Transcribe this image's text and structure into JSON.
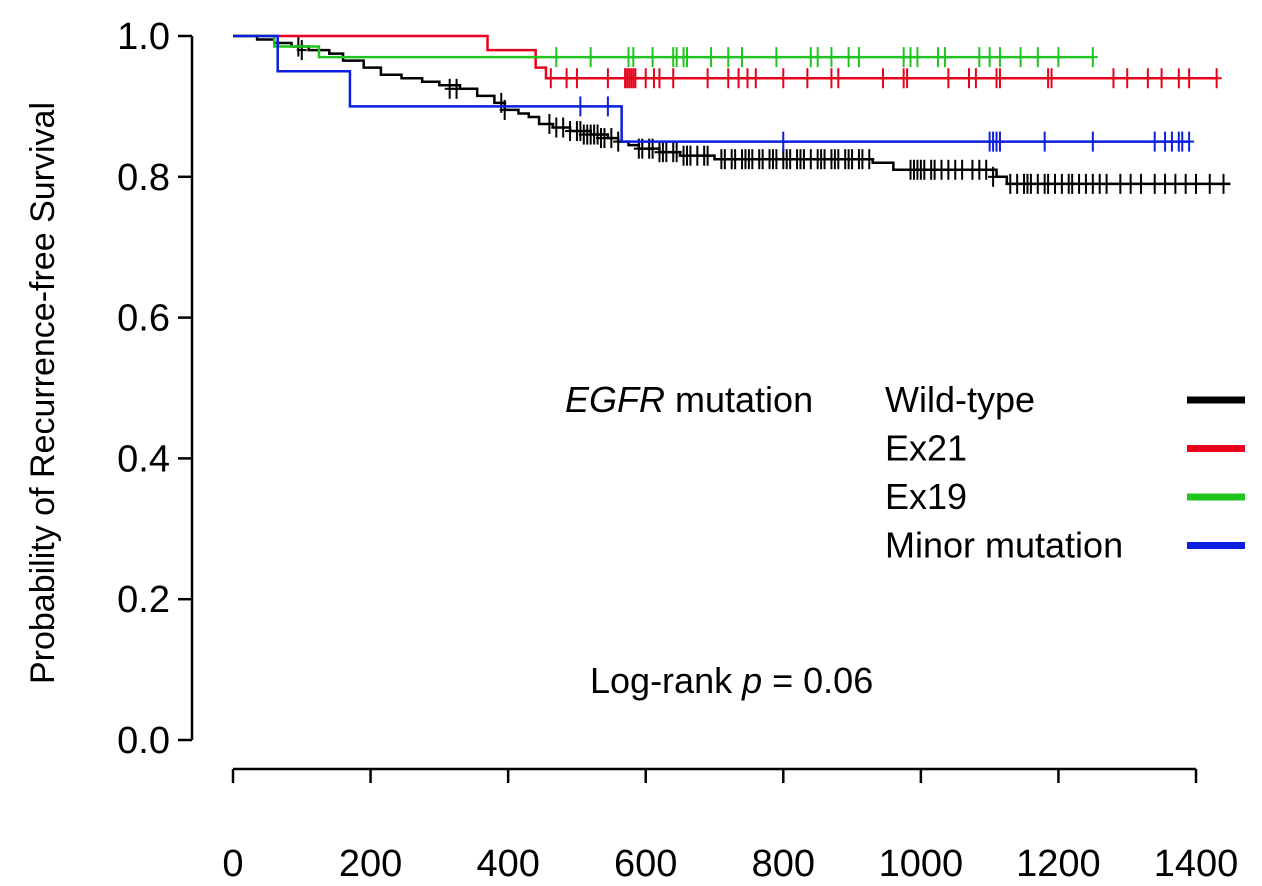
{
  "chart_data": {
    "type": "line",
    "subtype": "kaplan-meier",
    "title": "",
    "xlabel": "",
    "ylabel": "Probability of Recurrence-free Survival",
    "xlim": [
      0,
      1400
    ],
    "ylim": [
      0.0,
      1.0
    ],
    "x_ticks": [
      "0",
      "200",
      "400",
      "600",
      "800",
      "1000",
      "1200",
      "1400"
    ],
    "y_ticks": [
      "0.0",
      "0.2",
      "0.4",
      "0.6",
      "0.8",
      "1.0"
    ],
    "x_tick_values": [
      0,
      200,
      400,
      600,
      800,
      1000,
      1200,
      1400
    ],
    "y_tick_values": [
      0.0,
      0.2,
      0.4,
      0.6,
      0.8,
      1.0
    ],
    "grid": false,
    "legend": {
      "position": "right",
      "title_italic": "EGFR",
      "title_rest": " mutation"
    },
    "annotation": {
      "prefix": "Log-rank ",
      "p": "p",
      "suffix": " = 0.06"
    },
    "series": [
      {
        "name": "Wild-type",
        "color": "#000000",
        "steps": [
          [
            0,
            1.0
          ],
          [
            35,
            0.995
          ],
          [
            60,
            0.99
          ],
          [
            85,
            0.985
          ],
          [
            110,
            0.98
          ],
          [
            140,
            0.975
          ],
          [
            160,
            0.965
          ],
          [
            190,
            0.955
          ],
          [
            215,
            0.945
          ],
          [
            245,
            0.94
          ],
          [
            275,
            0.935
          ],
          [
            300,
            0.93
          ],
          [
            330,
            0.925
          ],
          [
            355,
            0.915
          ],
          [
            380,
            0.905
          ],
          [
            395,
            0.895
          ],
          [
            415,
            0.89
          ],
          [
            430,
            0.885
          ],
          [
            445,
            0.875
          ],
          [
            465,
            0.87
          ],
          [
            490,
            0.865
          ],
          [
            520,
            0.86
          ],
          [
            545,
            0.855
          ],
          [
            560,
            0.85
          ],
          [
            575,
            0.845
          ],
          [
            590,
            0.84
          ],
          [
            620,
            0.835
          ],
          [
            650,
            0.83
          ],
          [
            700,
            0.825
          ],
          [
            930,
            0.82
          ],
          [
            960,
            0.81
          ],
          [
            1110,
            0.8
          ],
          [
            1125,
            0.79
          ],
          [
            1450,
            0.79
          ]
        ],
        "censored": [
          [
            95,
            0.985
          ],
          [
            100,
            0.98
          ],
          [
            315,
            0.925
          ],
          [
            325,
            0.925
          ],
          [
            390,
            0.905
          ],
          [
            395,
            0.895
          ],
          [
            460,
            0.875
          ],
          [
            470,
            0.87
          ],
          [
            480,
            0.87
          ],
          [
            490,
            0.865
          ],
          [
            500,
            0.865
          ],
          [
            505,
            0.865
          ],
          [
            510,
            0.86
          ],
          [
            515,
            0.86
          ],
          [
            520,
            0.86
          ],
          [
            525,
            0.86
          ],
          [
            530,
            0.86
          ],
          [
            535,
            0.855
          ],
          [
            540,
            0.855
          ],
          [
            550,
            0.855
          ],
          [
            560,
            0.85
          ],
          [
            590,
            0.84
          ],
          [
            595,
            0.84
          ],
          [
            605,
            0.84
          ],
          [
            610,
            0.84
          ],
          [
            620,
            0.835
          ],
          [
            625,
            0.835
          ],
          [
            630,
            0.835
          ],
          [
            640,
            0.835
          ],
          [
            645,
            0.835
          ],
          [
            655,
            0.83
          ],
          [
            660,
            0.83
          ],
          [
            665,
            0.83
          ],
          [
            675,
            0.83
          ],
          [
            685,
            0.83
          ],
          [
            690,
            0.83
          ],
          [
            710,
            0.825
          ],
          [
            715,
            0.825
          ],
          [
            725,
            0.825
          ],
          [
            730,
            0.825
          ],
          [
            740,
            0.825
          ],
          [
            745,
            0.825
          ],
          [
            750,
            0.825
          ],
          [
            755,
            0.825
          ],
          [
            765,
            0.825
          ],
          [
            770,
            0.825
          ],
          [
            780,
            0.825
          ],
          [
            785,
            0.825
          ],
          [
            790,
            0.825
          ],
          [
            800,
            0.825
          ],
          [
            805,
            0.825
          ],
          [
            810,
            0.825
          ],
          [
            820,
            0.825
          ],
          [
            825,
            0.825
          ],
          [
            830,
            0.825
          ],
          [
            840,
            0.825
          ],
          [
            850,
            0.825
          ],
          [
            855,
            0.825
          ],
          [
            860,
            0.825
          ],
          [
            870,
            0.825
          ],
          [
            875,
            0.825
          ],
          [
            880,
            0.825
          ],
          [
            890,
            0.825
          ],
          [
            895,
            0.825
          ],
          [
            900,
            0.825
          ],
          [
            910,
            0.825
          ],
          [
            915,
            0.825
          ],
          [
            925,
            0.825
          ],
          [
            985,
            0.81
          ],
          [
            990,
            0.81
          ],
          [
            995,
            0.81
          ],
          [
            1000,
            0.81
          ],
          [
            1005,
            0.81
          ],
          [
            1015,
            0.81
          ],
          [
            1020,
            0.81
          ],
          [
            1030,
            0.81
          ],
          [
            1040,
            0.81
          ],
          [
            1050,
            0.81
          ],
          [
            1060,
            0.81
          ],
          [
            1075,
            0.81
          ],
          [
            1085,
            0.81
          ],
          [
            1095,
            0.81
          ],
          [
            1105,
            0.8
          ],
          [
            1130,
            0.79
          ],
          [
            1140,
            0.79
          ],
          [
            1150,
            0.79
          ],
          [
            1155,
            0.79
          ],
          [
            1160,
            0.79
          ],
          [
            1170,
            0.79
          ],
          [
            1180,
            0.79
          ],
          [
            1185,
            0.79
          ],
          [
            1195,
            0.79
          ],
          [
            1205,
            0.79
          ],
          [
            1215,
            0.79
          ],
          [
            1220,
            0.79
          ],
          [
            1230,
            0.79
          ],
          [
            1240,
            0.79
          ],
          [
            1250,
            0.79
          ],
          [
            1260,
            0.79
          ],
          [
            1270,
            0.79
          ],
          [
            1290,
            0.79
          ],
          [
            1305,
            0.79
          ],
          [
            1320,
            0.79
          ],
          [
            1340,
            0.79
          ],
          [
            1355,
            0.79
          ],
          [
            1370,
            0.79
          ],
          [
            1385,
            0.79
          ],
          [
            1400,
            0.79
          ],
          [
            1420,
            0.79
          ],
          [
            1440,
            0.79
          ]
        ]
      },
      {
        "name": "Ex21",
        "color": "#e8001c",
        "steps": [
          [
            0,
            1.0
          ],
          [
            370,
            1.0
          ],
          [
            370,
            0.98
          ],
          [
            440,
            0.98
          ],
          [
            440,
            0.955
          ],
          [
            455,
            0.955
          ],
          [
            455,
            0.94
          ],
          [
            1430,
            0.94
          ]
        ],
        "censored": [
          [
            462,
            0.94
          ],
          [
            485,
            0.94
          ],
          [
            500,
            0.94
          ],
          [
            545,
            0.94
          ],
          [
            570,
            0.94
          ],
          [
            573,
            0.94
          ],
          [
            576,
            0.94
          ],
          [
            579,
            0.94
          ],
          [
            582,
            0.94
          ],
          [
            585,
            0.94
          ],
          [
            600,
            0.94
          ],
          [
            612,
            0.94
          ],
          [
            620,
            0.94
          ],
          [
            640,
            0.94
          ],
          [
            690,
            0.94
          ],
          [
            720,
            0.94
          ],
          [
            735,
            0.94
          ],
          [
            748,
            0.94
          ],
          [
            760,
            0.94
          ],
          [
            800,
            0.94
          ],
          [
            835,
            0.94
          ],
          [
            870,
            0.94
          ],
          [
            880,
            0.94
          ],
          [
            945,
            0.94
          ],
          [
            975,
            0.94
          ],
          [
            980,
            0.94
          ],
          [
            1040,
            0.94
          ],
          [
            1070,
            0.94
          ],
          [
            1080,
            0.94
          ],
          [
            1110,
            0.94
          ],
          [
            1115,
            0.94
          ],
          [
            1185,
            0.94
          ],
          [
            1190,
            0.94
          ],
          [
            1280,
            0.94
          ],
          [
            1300,
            0.94
          ],
          [
            1330,
            0.94
          ],
          [
            1350,
            0.94
          ],
          [
            1375,
            0.94
          ],
          [
            1390,
            0.94
          ],
          [
            1430,
            0.94
          ]
        ]
      },
      {
        "name": "Ex19",
        "color": "#1fc41f",
        "steps": [
          [
            0,
            1.0
          ],
          [
            60,
            1.0
          ],
          [
            60,
            0.985
          ],
          [
            125,
            0.985
          ],
          [
            125,
            0.97
          ],
          [
            1250,
            0.97
          ]
        ],
        "censored": [
          [
            470,
            0.97
          ],
          [
            520,
            0.97
          ],
          [
            575,
            0.97
          ],
          [
            582,
            0.97
          ],
          [
            610,
            0.97
          ],
          [
            640,
            0.97
          ],
          [
            645,
            0.97
          ],
          [
            655,
            0.97
          ],
          [
            660,
            0.97
          ],
          [
            695,
            0.97
          ],
          [
            720,
            0.97
          ],
          [
            740,
            0.97
          ],
          [
            790,
            0.97
          ],
          [
            840,
            0.97
          ],
          [
            850,
            0.97
          ],
          [
            870,
            0.97
          ],
          [
            895,
            0.97
          ],
          [
            910,
            0.97
          ],
          [
            975,
            0.97
          ],
          [
            985,
            0.97
          ],
          [
            995,
            0.97
          ],
          [
            1025,
            0.97
          ],
          [
            1035,
            0.97
          ],
          [
            1085,
            0.97
          ],
          [
            1100,
            0.97
          ],
          [
            1115,
            0.97
          ],
          [
            1145,
            0.97
          ],
          [
            1170,
            0.97
          ],
          [
            1200,
            0.97
          ],
          [
            1250,
            0.97
          ]
        ]
      },
      {
        "name": "Minor mutation",
        "color": "#0c1fe0",
        "steps": [
          [
            0,
            1.0
          ],
          [
            65,
            1.0
          ],
          [
            65,
            0.95
          ],
          [
            170,
            0.95
          ],
          [
            170,
            0.9
          ],
          [
            565,
            0.9
          ],
          [
            565,
            0.85
          ],
          [
            1390,
            0.85
          ]
        ],
        "censored": [
          [
            505,
            0.9
          ],
          [
            545,
            0.9
          ],
          [
            800,
            0.85
          ],
          [
            1100,
            0.85
          ],
          [
            1105,
            0.85
          ],
          [
            1110,
            0.85
          ],
          [
            1115,
            0.85
          ],
          [
            1180,
            0.85
          ],
          [
            1250,
            0.85
          ],
          [
            1340,
            0.85
          ],
          [
            1355,
            0.85
          ],
          [
            1365,
            0.85
          ],
          [
            1375,
            0.85
          ],
          [
            1380,
            0.85
          ],
          [
            1390,
            0.85
          ]
        ]
      }
    ]
  }
}
